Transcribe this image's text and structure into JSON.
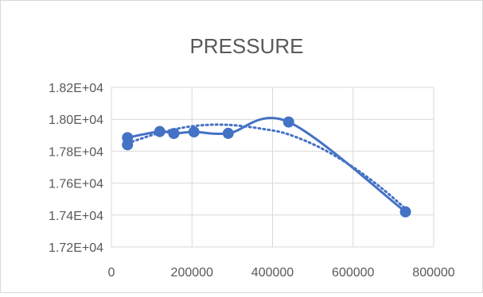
{
  "chart_data": {
    "type": "scatter",
    "title": "PRESSURE",
    "xlabel": "",
    "ylabel": "",
    "xlim": [
      0,
      800000
    ],
    "ylim": [
      17200,
      18200
    ],
    "x_ticks": [
      0,
      200000,
      400000,
      600000,
      800000
    ],
    "x_tick_labels": [
      "0",
      "200000",
      "400000",
      "600000",
      "800000"
    ],
    "y_ticks": [
      17200,
      17400,
      17600,
      17800,
      18000,
      18200
    ],
    "y_tick_labels": [
      "1.72E+04",
      "1.74E+04",
      "1.76E+04",
      "1.78E+04",
      "1.80E+04",
      "1.82E+04"
    ],
    "grid": "major",
    "legend": "none",
    "series": [
      {
        "style": "smoothed solid line with markers",
        "color": "#4472C4",
        "points": [
          {
            "x": 40000,
            "y": 17885
          },
          {
            "x": 40000,
            "y": 17840
          },
          {
            "x": 120000,
            "y": 17923
          },
          {
            "x": 155000,
            "y": 17911
          },
          {
            "x": 205000,
            "y": 17921
          },
          {
            "x": 290000,
            "y": 17912
          },
          {
            "x": 440000,
            "y": 17983
          },
          {
            "x": 730000,
            "y": 17420
          }
        ]
      }
    ],
    "trendline": {
      "style": "dotted",
      "type": "polynomial",
      "color": "#4472C4",
      "points": [
        {
          "x": 40000,
          "y": 17850
        },
        {
          "x": 120000,
          "y": 17915
        },
        {
          "x": 205000,
          "y": 17958
        },
        {
          "x": 290000,
          "y": 17965
        },
        {
          "x": 380000,
          "y": 17938
        },
        {
          "x": 440000,
          "y": 17905
        },
        {
          "x": 520000,
          "y": 17820
        },
        {
          "x": 600000,
          "y": 17700
        },
        {
          "x": 670000,
          "y": 17570
        },
        {
          "x": 730000,
          "y": 17440
        }
      ]
    }
  }
}
